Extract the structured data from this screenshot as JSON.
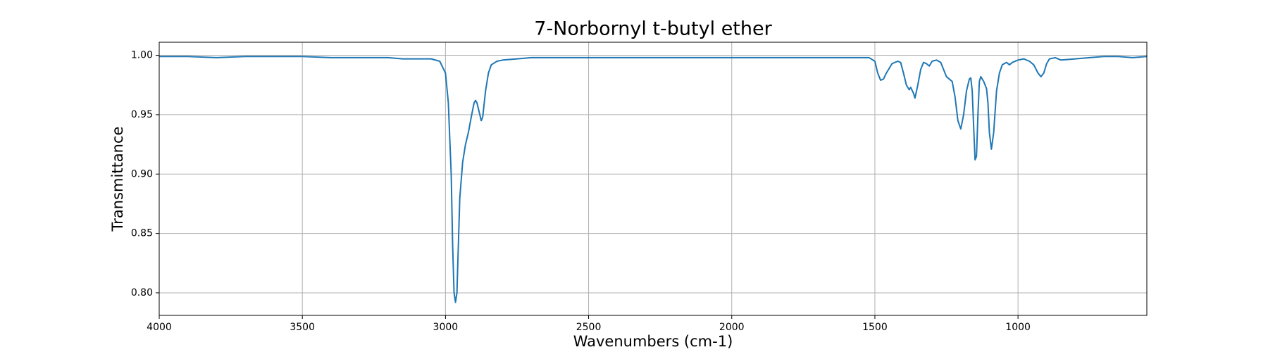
{
  "chart_data": {
    "type": "line",
    "title": "7-Norbornyl t-butyl ether",
    "x_label": "Wavenumbers (cm-1)",
    "y_label": "Transmittance",
    "xlim": [
      4000,
      550
    ],
    "ylim": [
      0.781,
      1.011
    ],
    "xticks": [
      4000,
      3500,
      3000,
      2500,
      2000,
      1500,
      1000
    ],
    "yticks": [
      {
        "value": 0.8,
        "label": "0.80"
      },
      {
        "value": 0.85,
        "label": "0.85"
      },
      {
        "value": 0.9,
        "label": "0.90"
      },
      {
        "value": 0.95,
        "label": "0.95"
      },
      {
        "value": 1.0,
        "label": "1.00"
      }
    ],
    "grid": true,
    "series": [
      {
        "color": "#1f77b4",
        "x": [
          4000,
          3900,
          3800,
          3700,
          3600,
          3500,
          3400,
          3300,
          3200,
          3150,
          3100,
          3050,
          3020,
          3000,
          2990,
          2980,
          2975,
          2970,
          2965,
          2960,
          2955,
          2950,
          2940,
          2930,
          2920,
          2910,
          2900,
          2895,
          2890,
          2880,
          2875,
          2870,
          2860,
          2850,
          2840,
          2820,
          2800,
          2750,
          2700,
          2600,
          2500,
          2400,
          2300,
          2200,
          2100,
          2000,
          1900,
          1800,
          1700,
          1600,
          1550,
          1520,
          1500,
          1490,
          1480,
          1470,
          1460,
          1440,
          1420,
          1410,
          1400,
          1390,
          1380,
          1375,
          1365,
          1360,
          1350,
          1340,
          1330,
          1320,
          1310,
          1300,
          1285,
          1270,
          1260,
          1250,
          1240,
          1230,
          1220,
          1210,
          1200,
          1190,
          1180,
          1170,
          1165,
          1160,
          1155,
          1150,
          1145,
          1140,
          1135,
          1130,
          1120,
          1110,
          1105,
          1100,
          1093,
          1085,
          1075,
          1065,
          1055,
          1040,
          1030,
          1020,
          1000,
          980,
          960,
          945,
          930,
          920,
          910,
          900,
          890,
          870,
          850,
          800,
          750,
          700,
          650,
          600,
          551
        ],
        "values": [
          0.999,
          0.999,
          0.998,
          0.999,
          0.999,
          0.999,
          0.998,
          0.998,
          0.998,
          0.997,
          0.997,
          0.997,
          0.995,
          0.985,
          0.96,
          0.9,
          0.84,
          0.8,
          0.792,
          0.8,
          0.84,
          0.88,
          0.91,
          0.925,
          0.935,
          0.948,
          0.96,
          0.962,
          0.96,
          0.95,
          0.945,
          0.948,
          0.97,
          0.985,
          0.992,
          0.995,
          0.996,
          0.997,
          0.998,
          0.998,
          0.998,
          0.998,
          0.998,
          0.998,
          0.998,
          0.998,
          0.998,
          0.998,
          0.998,
          0.998,
          0.998,
          0.998,
          0.995,
          0.985,
          0.979,
          0.98,
          0.985,
          0.993,
          0.995,
          0.994,
          0.985,
          0.975,
          0.971,
          0.973,
          0.968,
          0.964,
          0.975,
          0.988,
          0.994,
          0.993,
          0.991,
          0.995,
          0.996,
          0.994,
          0.988,
          0.982,
          0.98,
          0.978,
          0.965,
          0.945,
          0.938,
          0.95,
          0.97,
          0.98,
          0.981,
          0.97,
          0.94,
          0.912,
          0.915,
          0.95,
          0.978,
          0.982,
          0.978,
          0.972,
          0.96,
          0.935,
          0.921,
          0.935,
          0.97,
          0.985,
          0.992,
          0.994,
          0.992,
          0.994,
          0.996,
          0.997,
          0.995,
          0.992,
          0.985,
          0.982,
          0.985,
          0.993,
          0.997,
          0.998,
          0.996,
          0.997,
          0.998,
          0.999,
          0.999,
          0.998,
          0.999
        ]
      }
    ]
  }
}
